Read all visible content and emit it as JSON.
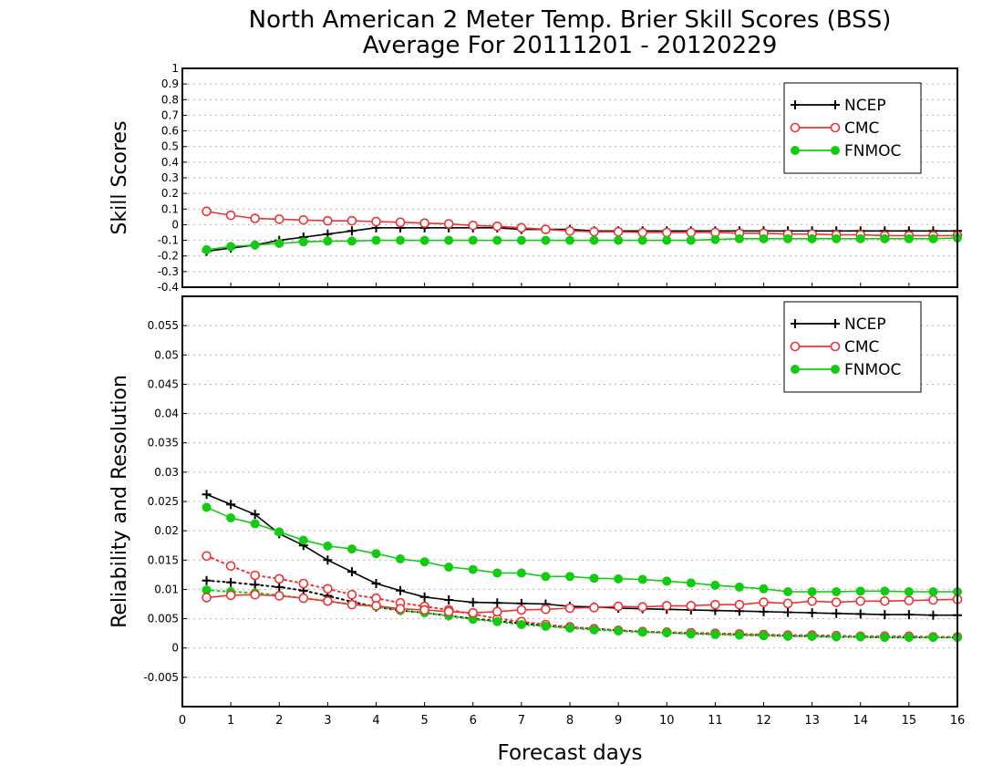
{
  "figure": {
    "title_line1": "North American 2 Meter Temp. Brier Skill Scores (BSS)",
    "title_line2": "Average For 20111201 - 20120229",
    "xlabel": "Forecast days"
  },
  "colors": {
    "NCEP": "#000000",
    "CMC": "#ee3333",
    "FNMOC": "#11cc11"
  },
  "chart_data": [
    {
      "type": "line",
      "panel": "top",
      "ylabel": "Skill Scores",
      "xlim": [
        0,
        16
      ],
      "ylim": [
        -0.4,
        1
      ],
      "xticks": [
        0,
        1,
        2,
        3,
        4,
        5,
        6,
        7,
        8,
        9,
        10,
        11,
        12,
        13,
        14,
        15,
        16
      ],
      "xtick_labels": [
        "0",
        "1",
        "2",
        "3",
        "4",
        "5",
        "6",
        "7",
        "8",
        "9",
        "10",
        "11",
        "12",
        "13",
        "14",
        "15",
        "16"
      ],
      "yticks": [
        -0.4,
        -0.3,
        -0.2,
        -0.1,
        0,
        0.1,
        0.2,
        0.3,
        0.4,
        0.5,
        0.6,
        0.7,
        0.8,
        0.9,
        1
      ],
      "ytick_labels": [
        "-0.4",
        "-0.3",
        "-0.2",
        "-0.1",
        "0",
        "0.1",
        "0.2",
        "0.3",
        "0.4",
        "0.5",
        "0.6",
        "0.7",
        "0.8",
        "0.9",
        "1"
      ],
      "grid": true,
      "legend_position": "top-right",
      "x": [
        0.5,
        1,
        1.5,
        2,
        2.5,
        3,
        3.5,
        4,
        4.5,
        5,
        5.5,
        6,
        6.5,
        7,
        7.5,
        8,
        8.5,
        9,
        9.5,
        10,
        10.5,
        11,
        11.5,
        12,
        12.5,
        13,
        13.5,
        14,
        14.5,
        15,
        15.5,
        16
      ],
      "series": [
        {
          "name": "NCEP",
          "marker": "plus",
          "values": [
            -0.17,
            -0.15,
            -0.13,
            -0.1,
            -0.08,
            -0.06,
            -0.04,
            -0.02,
            -0.02,
            -0.02,
            -0.02,
            -0.02,
            -0.02,
            -0.03,
            -0.03,
            -0.03,
            -0.04,
            -0.04,
            -0.04,
            -0.04,
            -0.04,
            -0.04,
            -0.04,
            -0.04,
            -0.04,
            -0.04,
            -0.04,
            -0.04,
            -0.04,
            -0.04,
            -0.04,
            -0.04
          ]
        },
        {
          "name": "CMC",
          "marker": "open-circle",
          "values": [
            0.085,
            0.06,
            0.04,
            0.035,
            0.03,
            0.025,
            0.025,
            0.02,
            0.015,
            0.01,
            0.005,
            -0.005,
            -0.01,
            -0.02,
            -0.03,
            -0.04,
            -0.045,
            -0.045,
            -0.05,
            -0.05,
            -0.05,
            -0.05,
            -0.055,
            -0.055,
            -0.06,
            -0.06,
            -0.065,
            -0.065,
            -0.07,
            -0.07,
            -0.07,
            -0.07
          ]
        },
        {
          "name": "FNMOC",
          "marker": "filled-circle",
          "values": [
            -0.16,
            -0.14,
            -0.13,
            -0.12,
            -0.11,
            -0.105,
            -0.105,
            -0.1,
            -0.1,
            -0.1,
            -0.1,
            -0.1,
            -0.1,
            -0.1,
            -0.1,
            -0.1,
            -0.1,
            -0.1,
            -0.1,
            -0.1,
            -0.1,
            -0.095,
            -0.09,
            -0.09,
            -0.09,
            -0.09,
            -0.09,
            -0.09,
            -0.09,
            -0.09,
            -0.09,
            -0.085
          ]
        }
      ]
    },
    {
      "type": "line",
      "panel": "bottom",
      "ylabel": "Reliability and Resolution",
      "xlim": [
        0,
        16
      ],
      "ylim": [
        -0.01,
        0.06
      ],
      "xticks": [
        0,
        1,
        2,
        3,
        4,
        5,
        6,
        7,
        8,
        9,
        10,
        11,
        12,
        13,
        14,
        15,
        16
      ],
      "xtick_labels": [
        "0",
        "1",
        "2",
        "3",
        "4",
        "5",
        "6",
        "7",
        "8",
        "9",
        "10",
        "11",
        "12",
        "13",
        "14",
        "15",
        "16"
      ],
      "yticks": [
        -0.005,
        0,
        0.005,
        0.01,
        0.015,
        0.02,
        0.025,
        0.03,
        0.035,
        0.04,
        0.045,
        0.05,
        0.055
      ],
      "ytick_labels": [
        "-0.005",
        "0",
        "0.005",
        "0.01",
        "0.015",
        "0.02",
        "0.025",
        "0.03",
        "0.035",
        "0.04",
        "0.045",
        "0.05",
        "0.055"
      ],
      "grid": true,
      "legend_position": "top-right",
      "x": [
        0.5,
        1,
        1.5,
        2,
        2.5,
        3,
        3.5,
        4,
        4.5,
        5,
        5.5,
        6,
        6.5,
        7,
        7.5,
        8,
        8.5,
        9,
        9.5,
        10,
        10.5,
        11,
        11.5,
        12,
        12.5,
        13,
        13.5,
        14,
        14.5,
        15,
        15.5,
        16
      ],
      "series": [
        {
          "name": "NCEP",
          "marker": "plus",
          "values": [
            0.0262,
            0.0245,
            0.0228,
            0.0195,
            0.0175,
            0.015,
            0.013,
            0.011,
            0.0098,
            0.0087,
            0.0082,
            0.0078,
            0.0077,
            0.0076,
            0.0075,
            0.0071,
            0.007,
            0.0068,
            0.0067,
            0.0066,
            0.0065,
            0.0064,
            0.0063,
            0.0062,
            0.0061,
            0.006,
            0.0059,
            0.0058,
            0.0057,
            0.0057,
            0.0056,
            0.0056
          ]
        },
        {
          "name": "CMC",
          "marker": "open-circle",
          "values": [
            0.0086,
            0.009,
            0.0091,
            0.0089,
            0.0085,
            0.008,
            0.0074,
            0.0072,
            0.0067,
            0.0065,
            0.0062,
            0.006,
            0.0062,
            0.0065,
            0.0066,
            0.0068,
            0.0069,
            0.0071,
            0.007,
            0.0072,
            0.0072,
            0.0074,
            0.0074,
            0.0078,
            0.0076,
            0.008,
            0.0078,
            0.008,
            0.008,
            0.0081,
            0.0082,
            0.0083
          ]
        },
        {
          "name": "FNMOC",
          "marker": "filled-circle",
          "values": [
            0.024,
            0.0222,
            0.0212,
            0.0198,
            0.0184,
            0.0174,
            0.0169,
            0.0161,
            0.0152,
            0.0147,
            0.0138,
            0.0134,
            0.0128,
            0.0128,
            0.0122,
            0.0122,
            0.0119,
            0.0118,
            0.0117,
            0.0114,
            0.0111,
            0.0107,
            0.0104,
            0.0101,
            0.0096,
            0.0096,
            0.0096,
            0.0097,
            0.0097,
            0.0096,
            0.0096,
            0.0096
          ]
        },
        {
          "name": "NCEP",
          "marker": "plus",
          "dotted": true,
          "values": [
            0.0115,
            0.0112,
            0.0108,
            0.0104,
            0.0098,
            0.0089,
            0.0079,
            0.007,
            0.0064,
            0.006,
            0.0055,
            0.005,
            0.0046,
            0.0042,
            0.0038,
            0.0035,
            0.0033,
            0.003,
            0.0028,
            0.0026,
            0.0025,
            0.0024,
            0.0023,
            0.0022,
            0.0021,
            0.002,
            0.0019,
            0.0019,
            0.0018,
            0.0018,
            0.0018,
            0.0018
          ]
        },
        {
          "name": "CMC",
          "marker": "open-circle",
          "dotted": true,
          "values": [
            0.0157,
            0.014,
            0.0124,
            0.0118,
            0.011,
            0.0101,
            0.0091,
            0.0085,
            0.0077,
            0.0071,
            0.0065,
            0.0058,
            0.005,
            0.0045,
            0.004,
            0.0036,
            0.0033,
            0.003,
            0.0028,
            0.0027,
            0.0026,
            0.0025,
            0.0024,
            0.0023,
            0.0022,
            0.0022,
            0.0021,
            0.002,
            0.002,
            0.002,
            0.0019,
            0.0019
          ]
        },
        {
          "name": "FNMOC",
          "marker": "filled-circle",
          "dotted": true,
          "values": [
            0.0099,
            0.0096,
            0.0094,
            0.009,
            0.0085,
            0.008,
            0.0074,
            0.0071,
            0.0064,
            0.006,
            0.0055,
            0.0049,
            0.0045,
            0.004,
            0.0037,
            0.0034,
            0.0031,
            0.0029,
            0.0027,
            0.0026,
            0.0024,
            0.0023,
            0.0022,
            0.0021,
            0.002,
            0.002,
            0.0019,
            0.0019,
            0.0018,
            0.0018,
            0.0018,
            0.0018
          ]
        }
      ]
    }
  ]
}
